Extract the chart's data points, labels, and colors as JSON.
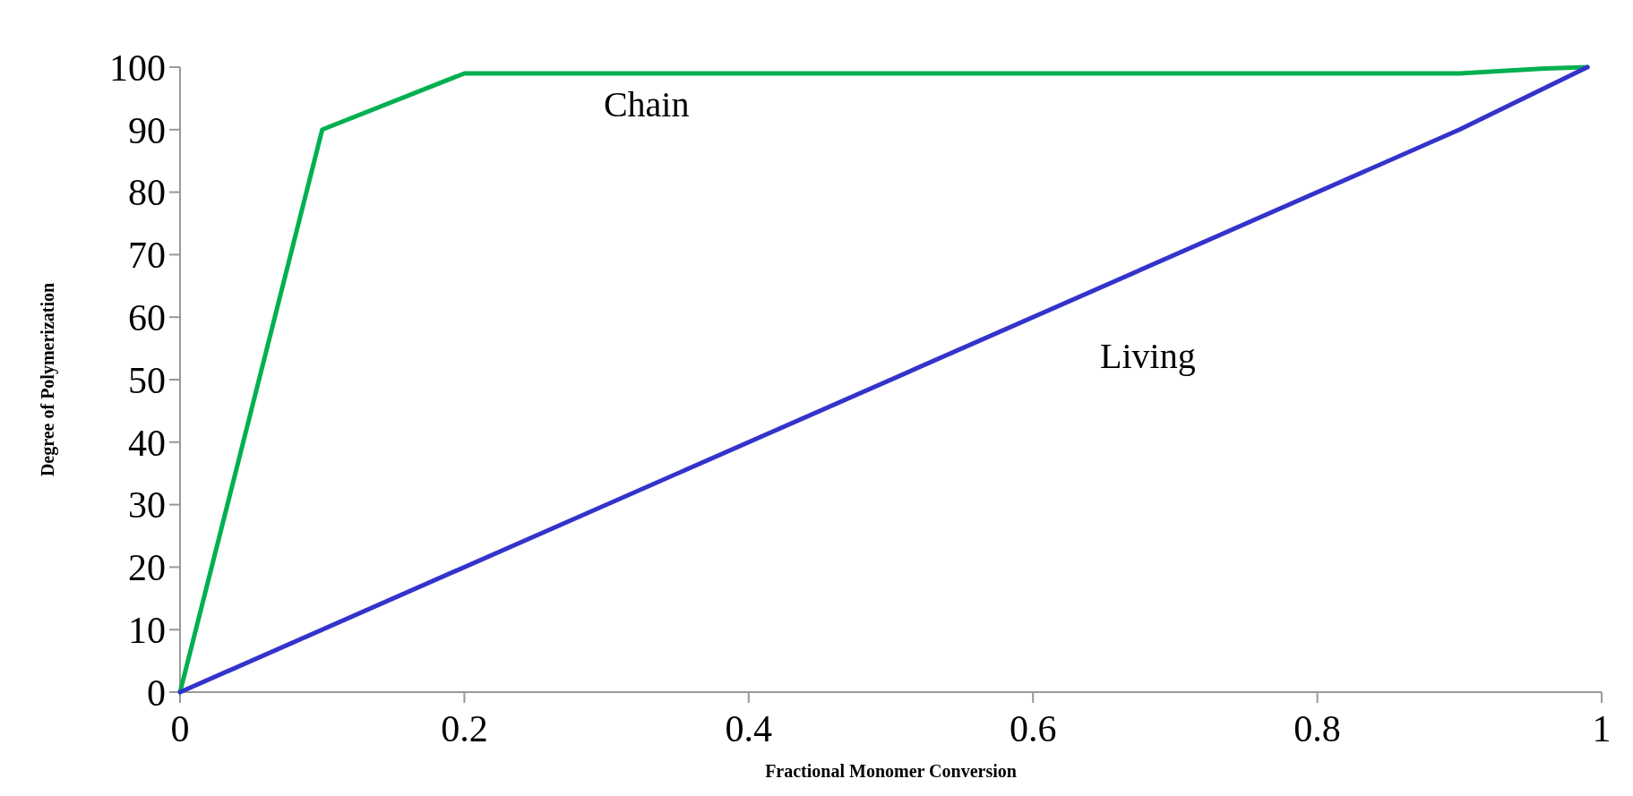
{
  "chart_data": {
    "type": "line",
    "xlabel": "Fractional Monomer Conversion",
    "ylabel": "Degree of Polymerization",
    "xlim": [
      0,
      1
    ],
    "ylim": [
      0,
      100
    ],
    "xticks": [
      0,
      0.2,
      0.4,
      0.6,
      0.8,
      1
    ],
    "yticks": [
      0,
      10,
      20,
      30,
      40,
      50,
      60,
      70,
      80,
      90,
      100
    ],
    "grid": false,
    "marker": "none",
    "line_style": "solid",
    "series": [
      {
        "name": "Chain",
        "color": "#00b050",
        "x": [
          0,
          0.1,
          0.2,
          0.9,
          0.96,
          0.99
        ],
        "values": [
          0,
          90,
          99,
          99,
          99.8,
          100
        ]
      },
      {
        "name": "Living",
        "color": "#3333cc",
        "x": [
          0,
          0.9,
          0.99
        ],
        "values": [
          0,
          90,
          100
        ]
      }
    ]
  }
}
